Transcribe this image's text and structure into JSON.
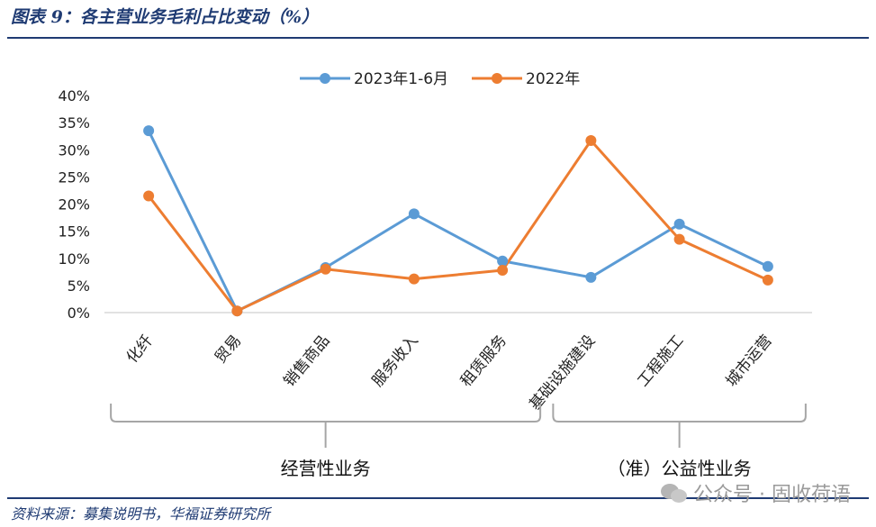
{
  "title": "图表 9：各主营业务毛利占比变动（%）",
  "source": "资料来源：募集说明书，华福证券研究所",
  "watermark": "公众号 · 固收荷语",
  "colors": {
    "series1": "#5b9bd5",
    "series2": "#ed7d31",
    "axis": "#d9d9d9",
    "bracket": "#a6a6a6",
    "header": "#1f3b73"
  },
  "chart_data": {
    "type": "line",
    "categories": [
      "化纤",
      "贸易",
      "销售商品",
      "服务收入",
      "租赁服务",
      "基础设施建设",
      "工程施工",
      "城市运营"
    ],
    "series": [
      {
        "name": "2023年1-6月",
        "values": [
          33.5,
          0.3,
          8.3,
          18.2,
          9.5,
          6.5,
          16.3,
          8.5
        ]
      },
      {
        "name": "2022年",
        "values": [
          21.5,
          0.3,
          8.0,
          6.2,
          7.8,
          31.7,
          13.5,
          6.0
        ]
      }
    ],
    "ylim": [
      0,
      40
    ],
    "yticks": [
      "0%",
      "5%",
      "10%",
      "15%",
      "20%",
      "25%",
      "30%",
      "35%",
      "40%"
    ],
    "legend_position": "top-center",
    "grid": false,
    "groups": [
      {
        "label": "经营性业务",
        "from": 0,
        "to": 4
      },
      {
        "label": "（准）公益性业务",
        "from": 5,
        "to": 7
      }
    ]
  }
}
